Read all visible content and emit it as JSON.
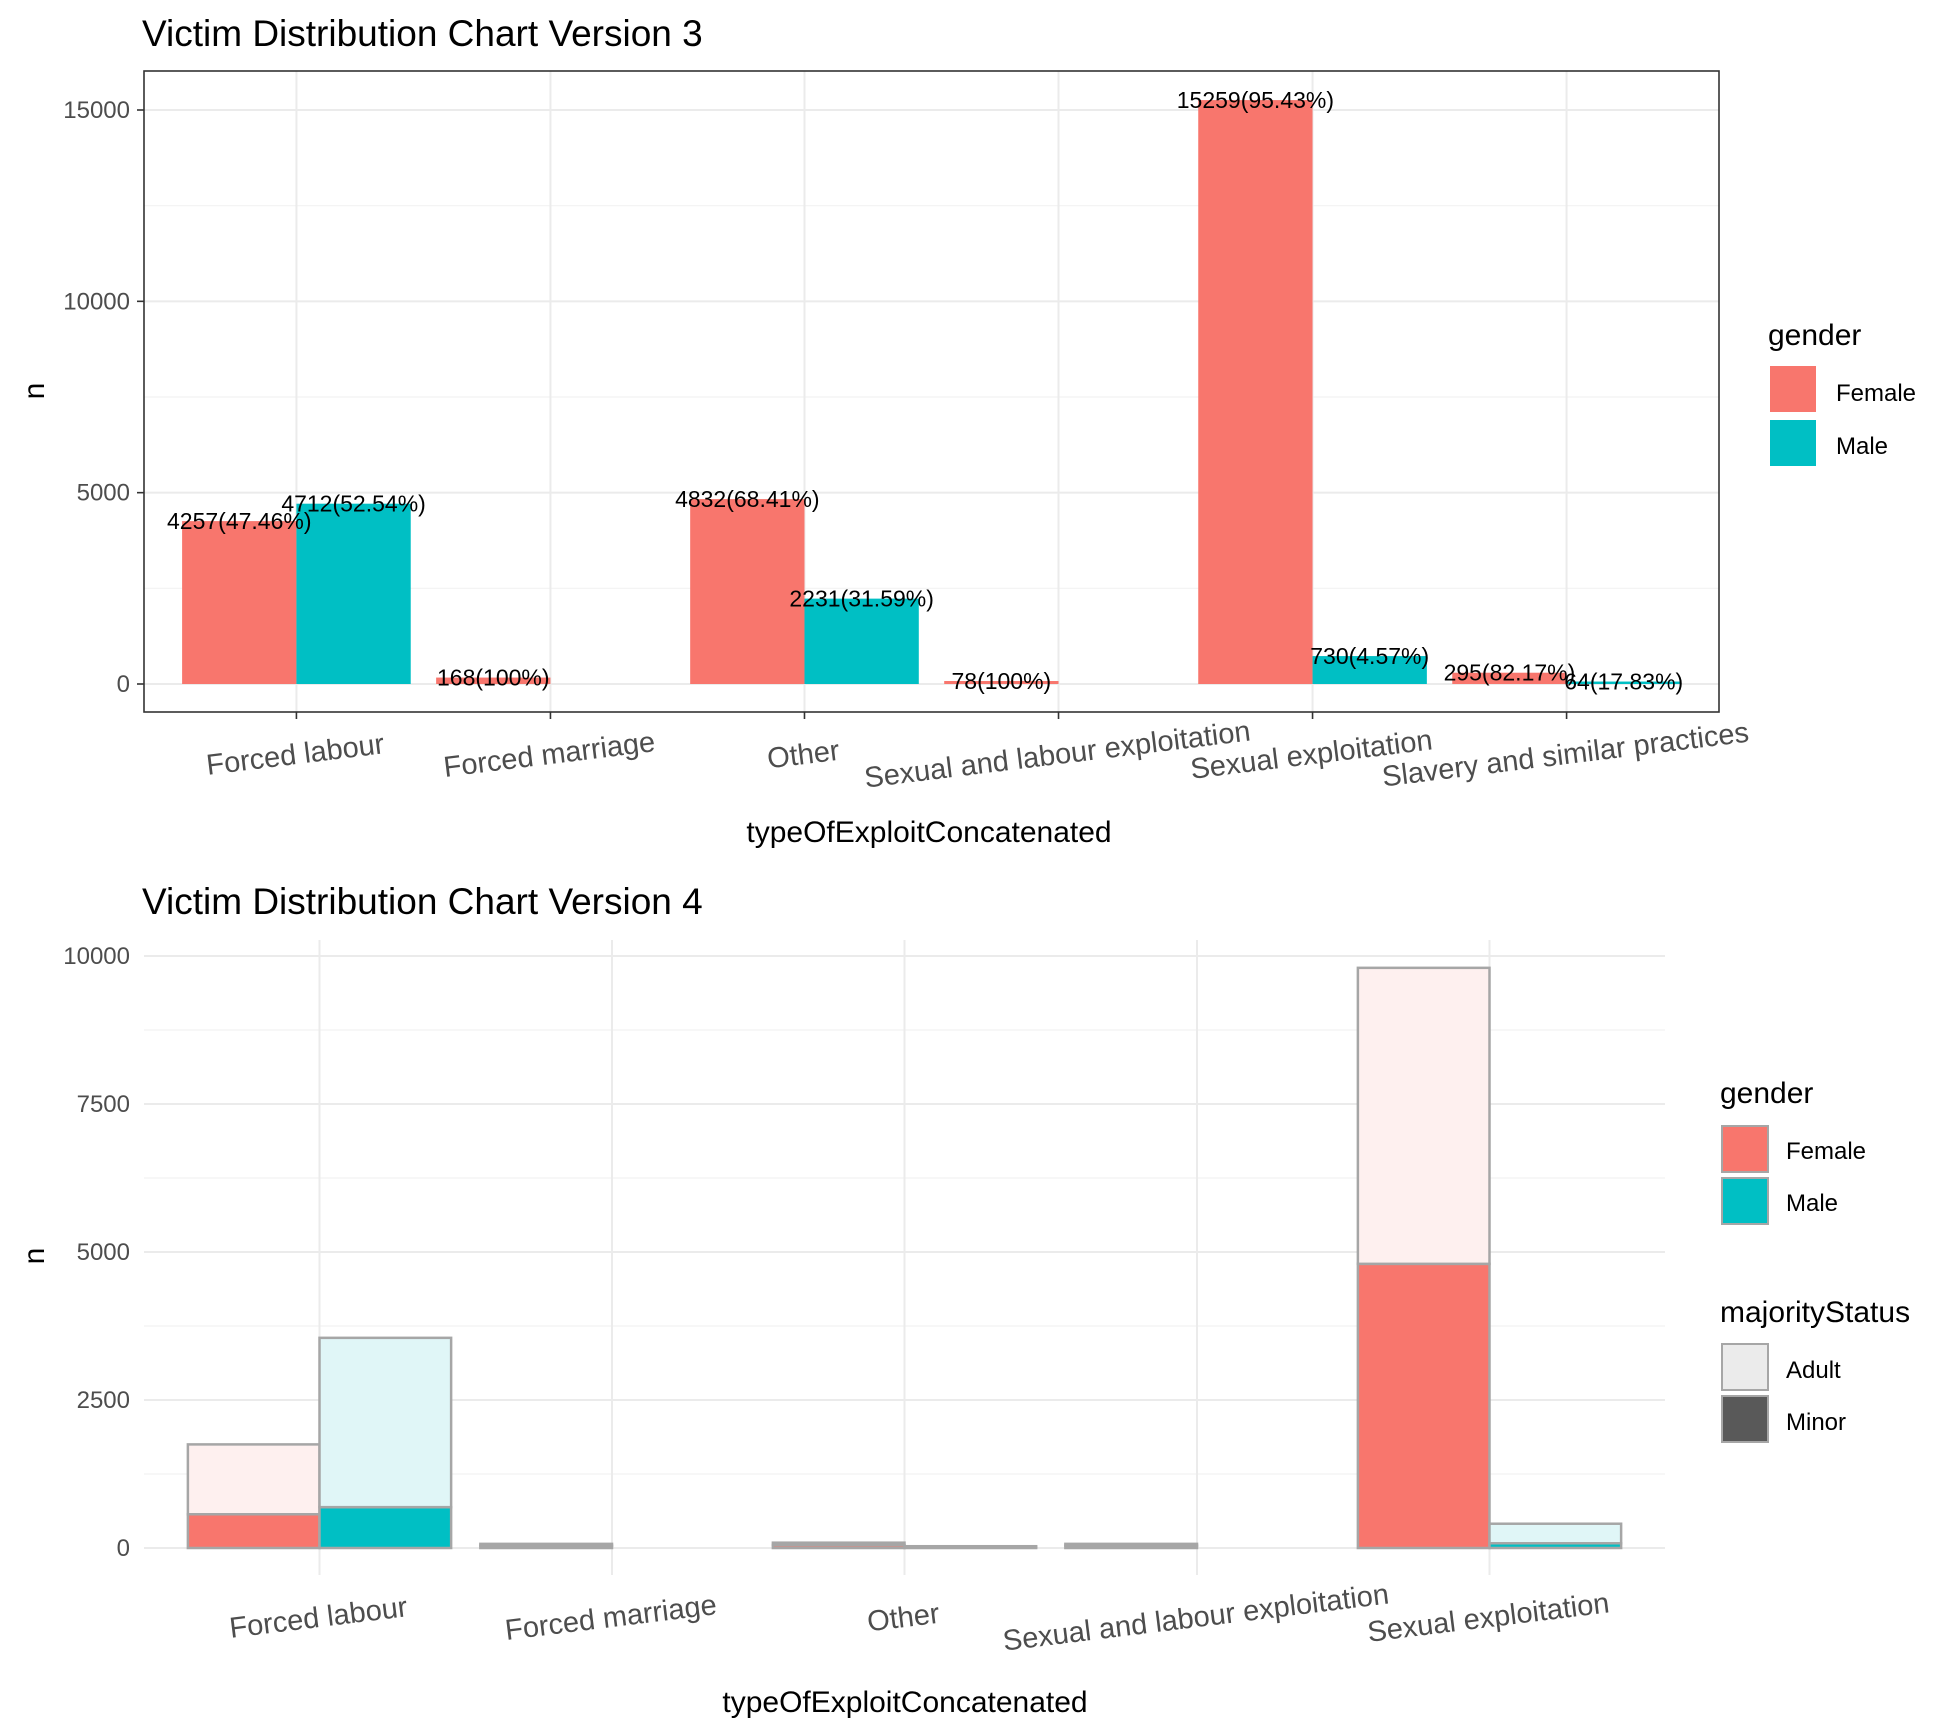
{
  "chart_data": [
    {
      "type": "bar",
      "title": "Victim Distribution Chart Version 3",
      "xlabel": "typeOfExploitConcatenated",
      "ylabel": "n",
      "ylim": [
        0,
        16000
      ],
      "yticks": [
        0,
        5000,
        10000,
        15000
      ],
      "categories": [
        "Forced labour",
        "Forced marriage",
        "Other",
        "Sexual and labour exploitation",
        "Sexual exploitation",
        "Slavery and similar practices"
      ],
      "legend": {
        "title": "gender",
        "position": "right",
        "items": [
          {
            "label": "Female",
            "color": "#F8766D"
          },
          {
            "label": "Male",
            "color": "#00BFC4"
          }
        ]
      },
      "series": [
        {
          "name": "Female",
          "color": "#F8766D",
          "values": [
            4257,
            168,
            4832,
            78,
            15259,
            295
          ],
          "labels": [
            "4257(47.46%)",
            "168(100%)",
            "4832(68.41%)",
            "78(100%)",
            "15259(95.43%)",
            "295(82.17%)"
          ]
        },
        {
          "name": "Male",
          "color": "#00BFC4",
          "values": [
            4712,
            null,
            2231,
            null,
            730,
            64
          ],
          "labels": [
            "4712(52.54%)",
            "",
            "2231(31.59%)",
            "",
            "730(4.57%)",
            "64(17.83%)"
          ]
        }
      ],
      "grid": true
    },
    {
      "type": "bar",
      "title": "Victim Distribution Chart Version 4",
      "xlabel": "typeOfExploitConcatenated",
      "ylabel": "n",
      "ylim": [
        0,
        10300
      ],
      "yticks": [
        0,
        2500,
        5000,
        7500,
        10000
      ],
      "categories": [
        "Forced labour",
        "Forced marriage",
        "Other",
        "Sexual and labour exploitation",
        "Sexual exploitation"
      ],
      "stacked": true,
      "legend": {
        "position": "right",
        "groups": [
          {
            "title": "gender",
            "items": [
              {
                "label": "Female",
                "color": "#F8766D"
              },
              {
                "label": "Male",
                "color": "#00BFC4"
              }
            ]
          },
          {
            "title": "majorityStatus",
            "items": [
              {
                "label": "Adult",
                "color": "#EBEBEB"
              },
              {
                "label": "Minor",
                "color": "#595959"
              }
            ]
          }
        ]
      },
      "series": [
        {
          "gender": "Female",
          "majorityStatus": "Minor",
          "color": "#F8766D",
          "values": [
            570,
            40,
            50,
            40,
            4800
          ]
        },
        {
          "gender": "Female",
          "majorityStatus": "Adult",
          "color": "#FEF0EF",
          "values": [
            1180,
            30,
            40,
            30,
            5000
          ]
        },
        {
          "gender": "Male",
          "majorityStatus": "Minor",
          "color": "#00BFC4",
          "values": [
            690,
            null,
            20,
            null,
            80
          ]
        },
        {
          "gender": "Male",
          "majorityStatus": "Adult",
          "color": "#E0F6F7",
          "values": [
            2860,
            null,
            10,
            null,
            330
          ]
        }
      ],
      "grid": true
    }
  ]
}
